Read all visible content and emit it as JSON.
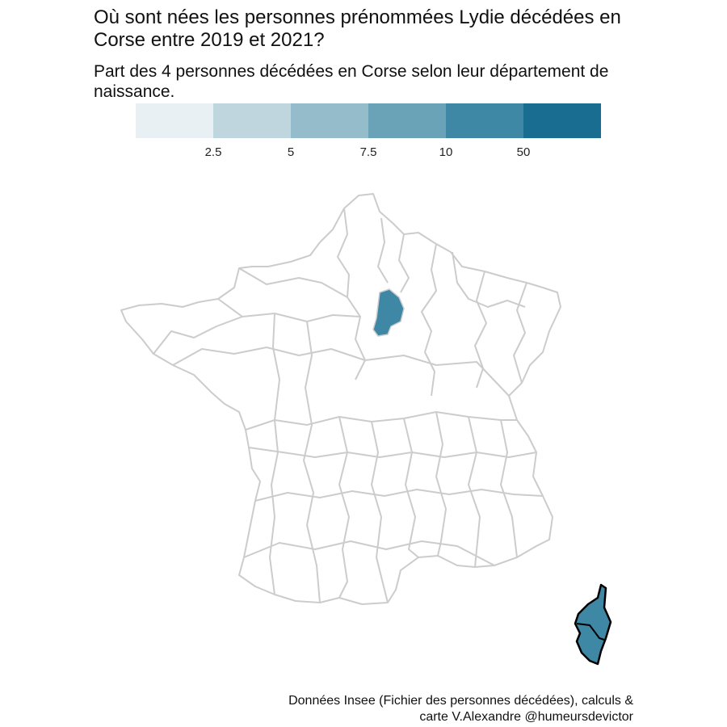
{
  "title_line1": "Où sont nées les personnes prénommées Lydie décédées en",
  "title_line2": "Corse entre 2019 et 2021?",
  "subtitle_line1": "Part des 4 personnes décédées en Corse selon leur département de",
  "subtitle_line2": "naissance.",
  "legend": {
    "colors": [
      "#e8f0f3",
      "#bfd6df",
      "#95bccb",
      "#6aa3b8",
      "#3e87a5",
      "#186d91"
    ],
    "ticks": [
      "2.5",
      "5",
      "7.5",
      "10",
      "50"
    ]
  },
  "map_colors": {
    "border": "#cccccc",
    "highlight": "#3e87a5",
    "corsica_border": "#000000"
  },
  "highlighted_regions": [
    "Seine-et-Marne",
    "Corse"
  ],
  "caption_line1": "Données Insee (Fichier des personnes décédées), calculs &",
  "caption_line2": "carte V.Alexandre @humeursdevictor"
}
